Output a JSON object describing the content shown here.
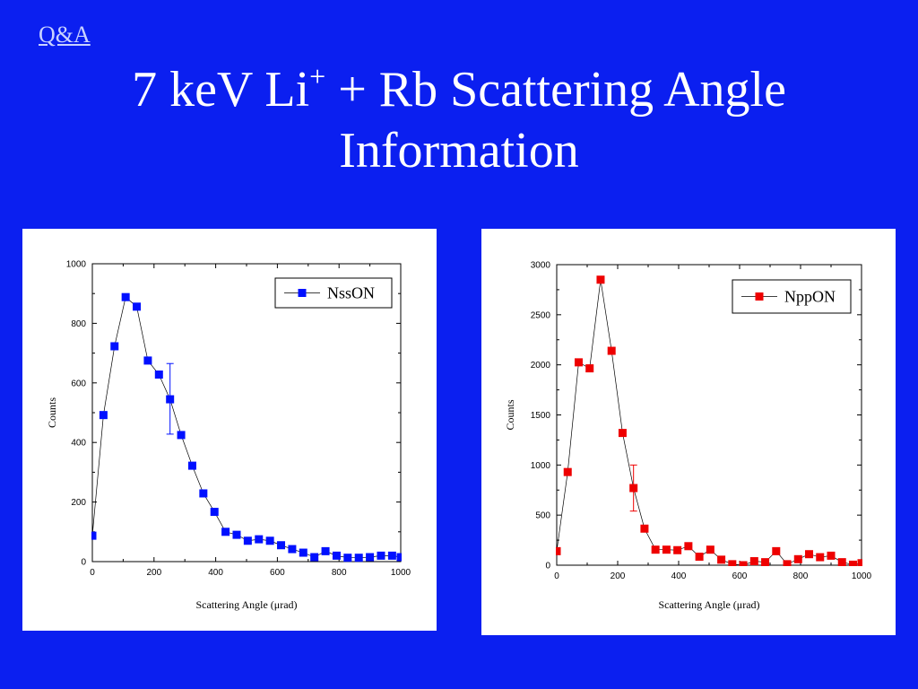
{
  "header": {
    "link_label": "Q&A",
    "title_part1": "7 keV Li",
    "title_sup": "+",
    "title_part2": " + Rb Scattering Angle",
    "title_line2": "Information"
  },
  "chart_data": [
    {
      "type": "scatter",
      "color": "#0010ff",
      "legend": "NssON",
      "xlabel": "Scattering Angle (μrad)",
      "ylabel": "Counts",
      "xlim": [
        0,
        1000
      ],
      "ylim": [
        0,
        1000
      ],
      "xticks": [
        0,
        200,
        400,
        600,
        800,
        1000
      ],
      "yticks": [
        0,
        200,
        400,
        600,
        800,
        1000
      ],
      "x": [
        0,
        36,
        72,
        108,
        144,
        180,
        216,
        252,
        288,
        324,
        360,
        396,
        432,
        468,
        504,
        540,
        576,
        612,
        648,
        684,
        720,
        756,
        792,
        828,
        864,
        900,
        936,
        972,
        1000
      ],
      "y": [
        87,
        492,
        723,
        888,
        856,
        675,
        628,
        545,
        425,
        322,
        229,
        167,
        100,
        90,
        70,
        75,
        70,
        55,
        42,
        30,
        15,
        35,
        20,
        13,
        13,
        15,
        20,
        20,
        15
      ],
      "error_bars": [
        {
          "x": 252,
          "y": 545,
          "low": 428,
          "high": 665
        }
      ]
    },
    {
      "type": "scatter",
      "color": "#ee0000",
      "legend": "NppON",
      "xlabel": "Scattering Angle (μrad)",
      "ylabel": "Counts",
      "xlim": [
        0,
        1000
      ],
      "ylim": [
        0,
        3000
      ],
      "xticks": [
        0,
        200,
        400,
        600,
        800,
        1000
      ],
      "yticks": [
        0,
        500,
        1000,
        1500,
        2000,
        2500,
        3000
      ],
      "x": [
        0,
        36,
        72,
        108,
        144,
        180,
        216,
        252,
        288,
        324,
        360,
        396,
        432,
        468,
        504,
        540,
        576,
        612,
        648,
        684,
        720,
        756,
        792,
        828,
        864,
        900,
        936,
        972,
        1000
      ],
      "y": [
        140,
        930,
        2025,
        1965,
        2850,
        2140,
        1320,
        770,
        365,
        155,
        155,
        150,
        190,
        85,
        155,
        55,
        10,
        0,
        40,
        30,
        140,
        10,
        60,
        110,
        80,
        95,
        30,
        5,
        20
      ],
      "error_bars": [
        {
          "x": 252,
          "y": 770,
          "low": 540,
          "high": 1000
        }
      ]
    }
  ]
}
